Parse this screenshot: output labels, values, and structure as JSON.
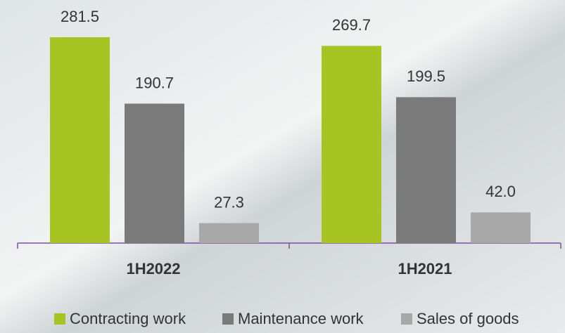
{
  "chart_data": {
    "type": "bar",
    "categories": [
      "1H2022",
      "1H2021"
    ],
    "series": [
      {
        "name": "Contracting work",
        "color": "#a8c423",
        "values": [
          281.5,
          269.7
        ],
        "value_labels": [
          "281.5",
          "269.7"
        ]
      },
      {
        "name": "Maintenance work",
        "color": "#7a7a7a",
        "values": [
          190.7,
          199.5
        ],
        "value_labels": [
          "190.7",
          "199.5"
        ]
      },
      {
        "name": "Sales of goods",
        "color": "#a8a8a8",
        "values": [
          27.3,
          42.0
        ],
        "value_labels": [
          "27.3",
          "42.0"
        ]
      }
    ]
  }
}
